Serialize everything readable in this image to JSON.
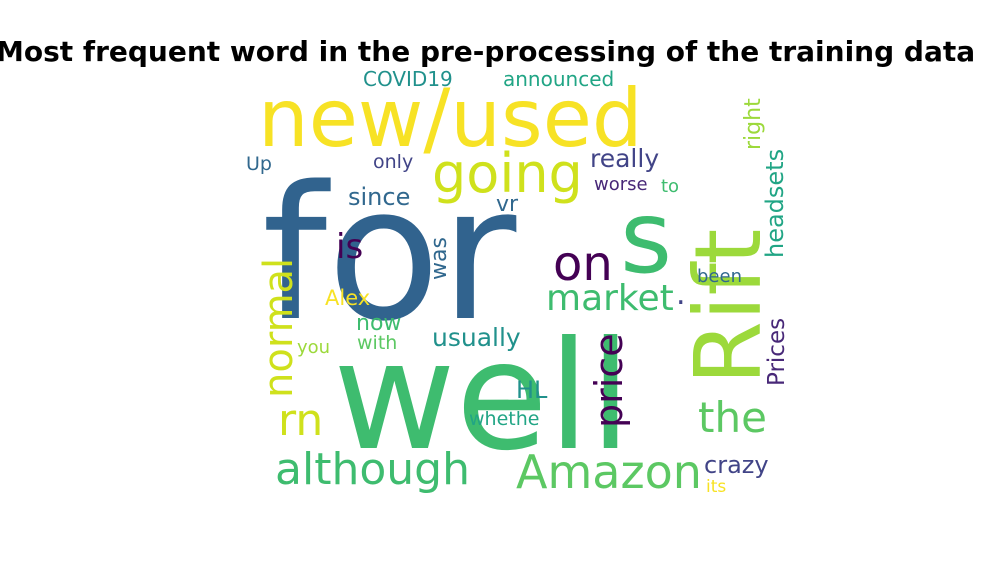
{
  "chart_data": {
    "type": "wordcloud",
    "title": "Most frequent word in the pre-processing of the training data",
    "colormap": "viridis",
    "words": [
      {
        "text": "for",
        "color": "#31638e"
      },
      {
        "text": "well",
        "color": "#3ebc6f"
      },
      {
        "text": "new/used",
        "color": "#f7e225"
      },
      {
        "text": "Rift",
        "color": "#9cd93b"
      },
      {
        "text": "s",
        "color": "#3ebc6f"
      },
      {
        "text": "going",
        "color": "#cfe11c"
      },
      {
        "text": "on",
        "color": "#440154"
      },
      {
        "text": "market",
        "color": "#3ebc6f"
      },
      {
        "text": "Amazon",
        "color": "#5cc863"
      },
      {
        "text": "although",
        "color": "#3ebc6f"
      },
      {
        "text": "normal",
        "color": "#cfe11c"
      },
      {
        "text": "rn",
        "color": "#cfe11c"
      },
      {
        "text": "the",
        "color": "#5cc863"
      },
      {
        "text": "price",
        "color": "#440154"
      },
      {
        "text": "is",
        "color": "#440154"
      },
      {
        "text": "really",
        "color": "#414487"
      },
      {
        "text": "headsets",
        "color": "#21a585"
      },
      {
        "text": "Prices",
        "color": "#482878"
      },
      {
        "text": "usually",
        "color": "#21918c"
      },
      {
        "text": "since",
        "color": "#31688e"
      },
      {
        "text": "crazy",
        "color": "#414487"
      },
      {
        "text": "right",
        "color": "#9cd93b"
      },
      {
        "text": "announced",
        "color": "#21a585"
      },
      {
        "text": "COVID19",
        "color": "#21918c"
      },
      {
        "text": "HL",
        "color": "#21918c"
      },
      {
        "text": "now",
        "color": "#3ebc6f"
      },
      {
        "text": "Alex",
        "color": "#f7e225"
      },
      {
        "text": "vr",
        "color": "#31688e"
      },
      {
        "text": "was",
        "color": "#31688e"
      },
      {
        "text": "worse",
        "color": "#482878"
      },
      {
        "text": "to",
        "color": "#3ebc6f"
      },
      {
        "text": "been",
        "color": "#31688e"
      },
      {
        "text": "only",
        "color": "#414487"
      },
      {
        "text": "Up",
        "color": "#31688e"
      },
      {
        "text": "with",
        "color": "#5cc863"
      },
      {
        "text": "you",
        "color": "#9cd93b"
      },
      {
        "text": "whethe",
        "color": "#21a585"
      },
      {
        "text": "its",
        "color": "#f7e225"
      },
      {
        "text": ".",
        "color": "#414487"
      }
    ]
  }
}
